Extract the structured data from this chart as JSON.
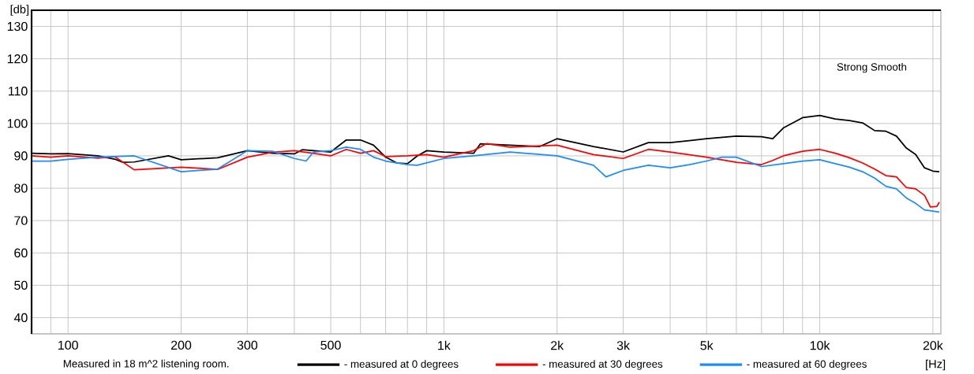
{
  "chart_data": {
    "type": "line",
    "xlabel": "[Hz]",
    "ylabel": "[db]",
    "annotations": [
      "Strong Smooth",
      "Measured in 18 m^2  listening room."
    ],
    "log": "x",
    "grid": true,
    "legend": "bottom",
    "xlim": [
      80,
      21000
    ],
    "ylim": [
      35,
      135
    ],
    "xticks": [
      {
        "value": 90,
        "label": null
      },
      100,
      200,
      300,
      {
        "value": 400,
        "label": null
      },
      500,
      {
        "value": 600,
        "label": null
      },
      {
        "value": 700,
        "label": null
      },
      {
        "value": 800,
        "label": null
      },
      {
        "value": 900,
        "label": null
      },
      {
        "value": 1000,
        "label": "1k"
      },
      {
        "value": 2000,
        "label": "2k"
      },
      {
        "value": 3000,
        "label": "3k"
      },
      {
        "value": 4000,
        "label": null
      },
      {
        "value": 5000,
        "label": "5k"
      },
      {
        "value": 6000,
        "label": null
      },
      {
        "value": 7000,
        "label": null
      },
      {
        "value": 8000,
        "label": null
      },
      {
        "value": 9000,
        "label": null
      },
      {
        "value": 10000,
        "label": "10k"
      },
      {
        "value": 20000,
        "label": "20k"
      }
    ],
    "yticks": [
      40,
      50,
      60,
      70,
      80,
      90,
      100,
      110,
      120,
      130
    ],
    "series": [
      {
        "name": "- measured at 0 degrees",
        "color": "#000000",
        "x": [
          80,
          90,
          100,
          120,
          133,
          140,
          150,
          185,
          200,
          250,
          300,
          350,
          400,
          420,
          500,
          550,
          600,
          650,
          700,
          750,
          800,
          850,
          900,
          1000,
          1200,
          1250,
          1500,
          1800,
          2000,
          2500,
          3000,
          3500,
          4000,
          4500,
          5000,
          6000,
          7000,
          7500,
          8000,
          9000,
          10000,
          11000,
          12000,
          13000,
          14000,
          15000,
          16000,
          17000,
          18000,
          19000,
          20000,
          20800
        ],
        "values": [
          90.8,
          90.6,
          90.7,
          90,
          89,
          88,
          88.1,
          90,
          88.8,
          89.4,
          91.6,
          90.8,
          90.6,
          91.9,
          91.2,
          94.9,
          94.9,
          93.3,
          89.6,
          87.8,
          87.6,
          90,
          91.6,
          91.2,
          90.8,
          93.7,
          93.3,
          92.9,
          95.3,
          92.9,
          91.2,
          94.1,
          94.1,
          94.7,
          95.3,
          96.1,
          95.9,
          95.3,
          98.6,
          101.8,
          102.5,
          101.4,
          100.9,
          100.2,
          97.8,
          97.6,
          96.1,
          92.4,
          90.4,
          86.3,
          85.3,
          85.1
        ]
      },
      {
        "name": "- measured at 30 degrees",
        "color": "#ff0000",
        "x": [
          80,
          90,
          100,
          120,
          133,
          150,
          200,
          250,
          300,
          350,
          400,
          500,
          550,
          600,
          650,
          700,
          800,
          900,
          1000,
          1200,
          1300,
          1500,
          2000,
          2500,
          3000,
          3500,
          4000,
          5000,
          6000,
          7000,
          7500,
          8000,
          9000,
          10000,
          11000,
          12000,
          13000,
          14000,
          15000,
          16000,
          17000,
          18000,
          19000,
          19700,
          20500,
          20800
        ],
        "values": [
          90,
          89.6,
          90,
          89.3,
          89.8,
          85.7,
          86.5,
          85.8,
          89.6,
          91.1,
          91.6,
          90,
          92,
          90.8,
          91.6,
          89.8,
          90,
          90.4,
          89.6,
          91.6,
          93.8,
          92.7,
          93.3,
          90.4,
          89.2,
          92,
          91.2,
          89.6,
          88,
          87.3,
          88.6,
          90,
          91.4,
          92,
          90.8,
          89.4,
          87.8,
          85.9,
          83.9,
          83.5,
          80.2,
          79.8,
          77.8,
          74.2,
          74.4,
          75.7
        ]
      },
      {
        "name": "- measured at 60 degrees",
        "color": "#1a8cff",
        "x": [
          80,
          90,
          100,
          120,
          150,
          200,
          250,
          300,
          350,
          400,
          430,
          450,
          500,
          550,
          600,
          650,
          700,
          800,
          850,
          1000,
          1200,
          1500,
          2000,
          2500,
          2700,
          3000,
          3500,
          4000,
          4500,
          5000,
          5500,
          6000,
          7000,
          8000,
          9000,
          10000,
          11000,
          12000,
          13000,
          14000,
          15000,
          16000,
          17000,
          18000,
          19000,
          20000,
          20800
        ],
        "values": [
          88.4,
          88.4,
          88.9,
          89.6,
          90,
          85.1,
          85.9,
          91.6,
          91.4,
          89.2,
          88.4,
          91.2,
          91.6,
          92.7,
          92,
          89.6,
          88.4,
          87.3,
          87.1,
          89.2,
          90,
          91.2,
          90,
          87.1,
          83.5,
          85.5,
          87.1,
          86.3,
          87.3,
          88.4,
          89.6,
          89.6,
          86.7,
          87.6,
          88.4,
          88.8,
          87.6,
          86.5,
          85.1,
          83.1,
          80.6,
          79.8,
          77,
          75.3,
          73.3,
          72.9,
          72.6
        ]
      }
    ]
  }
}
